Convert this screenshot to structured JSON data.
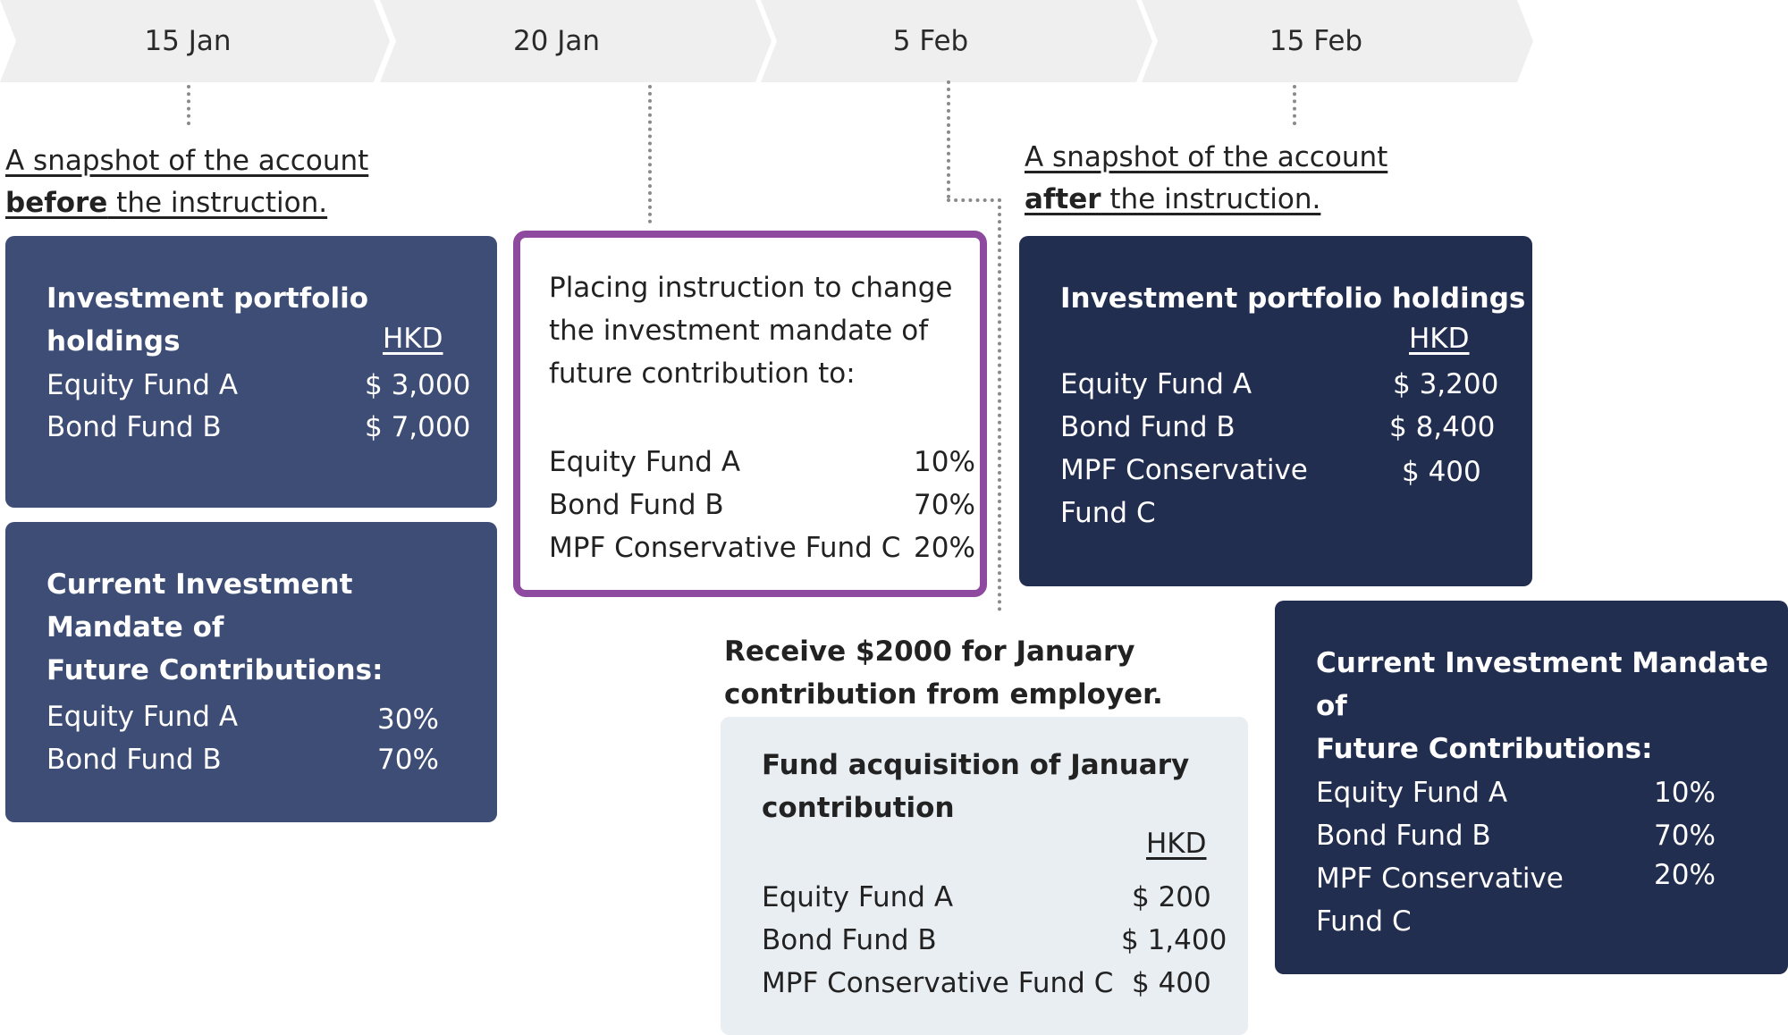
{
  "timeline": [
    "15 Jan",
    "20 Jan",
    "5 Feb",
    "15 Feb"
  ],
  "before_caption": {
    "line1": "A snapshot of the account",
    "bold": "before",
    "rest": " the instruction."
  },
  "after_caption": {
    "line1": "A snapshot of the account",
    "bold": "after",
    "rest": " the instruction."
  },
  "before_holdings": {
    "title": "Investment portfolio holdings",
    "currency": "HKD",
    "rows": [
      {
        "label": "Equity Fund A",
        "value": "$ 3,000"
      },
      {
        "label": "Bond Fund B",
        "value": "$ 7,000"
      }
    ]
  },
  "before_mandate": {
    "title_line1": "Current Investment Mandate of",
    "title_line2": "Future Contributions:",
    "rows": [
      {
        "label": "Equity Fund A",
        "value": "30%"
      },
      {
        "label": "Bond Fund B",
        "value": "70%"
      }
    ]
  },
  "instruction": {
    "line1": "Placing instruction to change",
    "line2": "the investment mandate of",
    "line3": "future contribution to:",
    "rows": [
      {
        "label": "Equity Fund A",
        "value": "10%"
      },
      {
        "label": "Bond Fund B",
        "value": "70%"
      },
      {
        "label": "MPF Conservative Fund C",
        "value": "20%"
      }
    ]
  },
  "receive_note": {
    "line1": "Receive $2000 for January",
    "line2": "contribution from employer."
  },
  "acquisition": {
    "title_line1": "Fund acquisition of January",
    "title_line2": "contribution",
    "currency": "HKD",
    "rows": [
      {
        "label": "Equity Fund A",
        "value": "$ 200"
      },
      {
        "label": "Bond Fund B",
        "value": "$ 1,400"
      },
      {
        "label": "MPF Conservative Fund C",
        "value": "$ 400"
      }
    ]
  },
  "after_holdings": {
    "title": "Investment portfolio holdings",
    "currency": "HKD",
    "rows": [
      {
        "label": "Equity Fund A",
        "value": "$ 3,200"
      },
      {
        "label": "Bond Fund B",
        "value": "$ 8,400"
      },
      {
        "label_line1": "MPF Conservative",
        "label_line2": "Fund C",
        "value": "$ 400"
      }
    ]
  },
  "after_mandate": {
    "title_line1": "Current Investment Mandate of",
    "title_line2": "Future Contributions:",
    "rows": [
      {
        "label": "Equity Fund A",
        "value": "10%"
      },
      {
        "label": "Bond Fund B",
        "value": "70%"
      },
      {
        "label_line1": "MPF Conservative",
        "label_line2": "Fund C",
        "value": "20%"
      }
    ]
  },
  "colors": {
    "chevron": "#efefef",
    "before_cards": "#3d4d75",
    "after_cards": "#222e50",
    "acquisition_card": "#e9eef3",
    "instruction_border": "#8e4a9f",
    "connector": "#8a8a8a"
  }
}
